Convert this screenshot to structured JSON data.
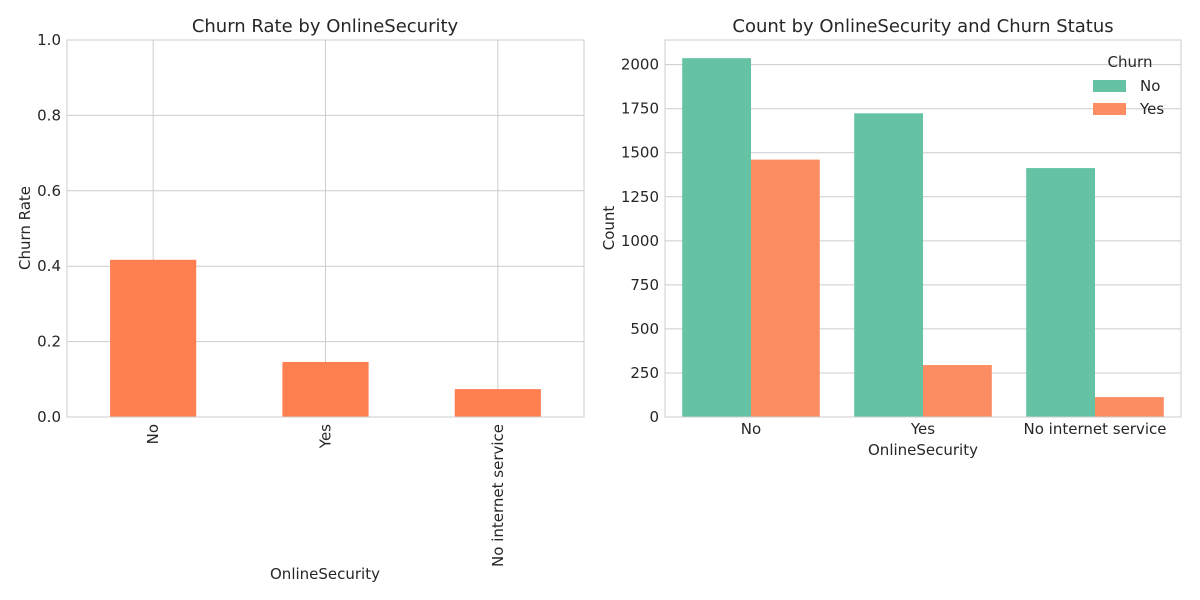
{
  "chart_data": [
    {
      "type": "bar",
      "title": "Churn Rate by OnlineSecurity",
      "xlabel": "OnlineSecurity",
      "ylabel": "Churn Rate",
      "categories": [
        "No",
        "Yes",
        "No internet service"
      ],
      "values": [
        0.417,
        0.146,
        0.074
      ],
      "ylim": [
        0,
        1.0
      ],
      "yticks": [
        "0.0",
        "0.2",
        "0.4",
        "0.6",
        "0.8",
        "1.0"
      ],
      "ytick_values": [
        0,
        0.2,
        0.4,
        0.6,
        0.8,
        1.0
      ],
      "grid": true,
      "bar_color": "#ff7f50"
    },
    {
      "type": "bar",
      "title": "Count by OnlineSecurity and Churn Status",
      "xlabel": "OnlineSecurity",
      "ylabel": "Count",
      "categories": [
        "No",
        "Yes",
        "No internet service"
      ],
      "series": [
        {
          "name": "No",
          "values": [
            2037,
            1724,
            1413
          ],
          "color": "#66c2a5"
        },
        {
          "name": "Yes",
          "values": [
            1461,
            295,
            113
          ],
          "color": "#fc8d62"
        }
      ],
      "ylim": [
        0,
        2140
      ],
      "yticks": [
        "0",
        "250",
        "500",
        "750",
        "1000",
        "1250",
        "1500",
        "1750",
        "2000"
      ],
      "ytick_values": [
        0,
        250,
        500,
        750,
        1000,
        1250,
        1500,
        1750,
        2000
      ],
      "grid": true,
      "legend": {
        "title": "Churn",
        "placement": "top-right"
      }
    }
  ]
}
